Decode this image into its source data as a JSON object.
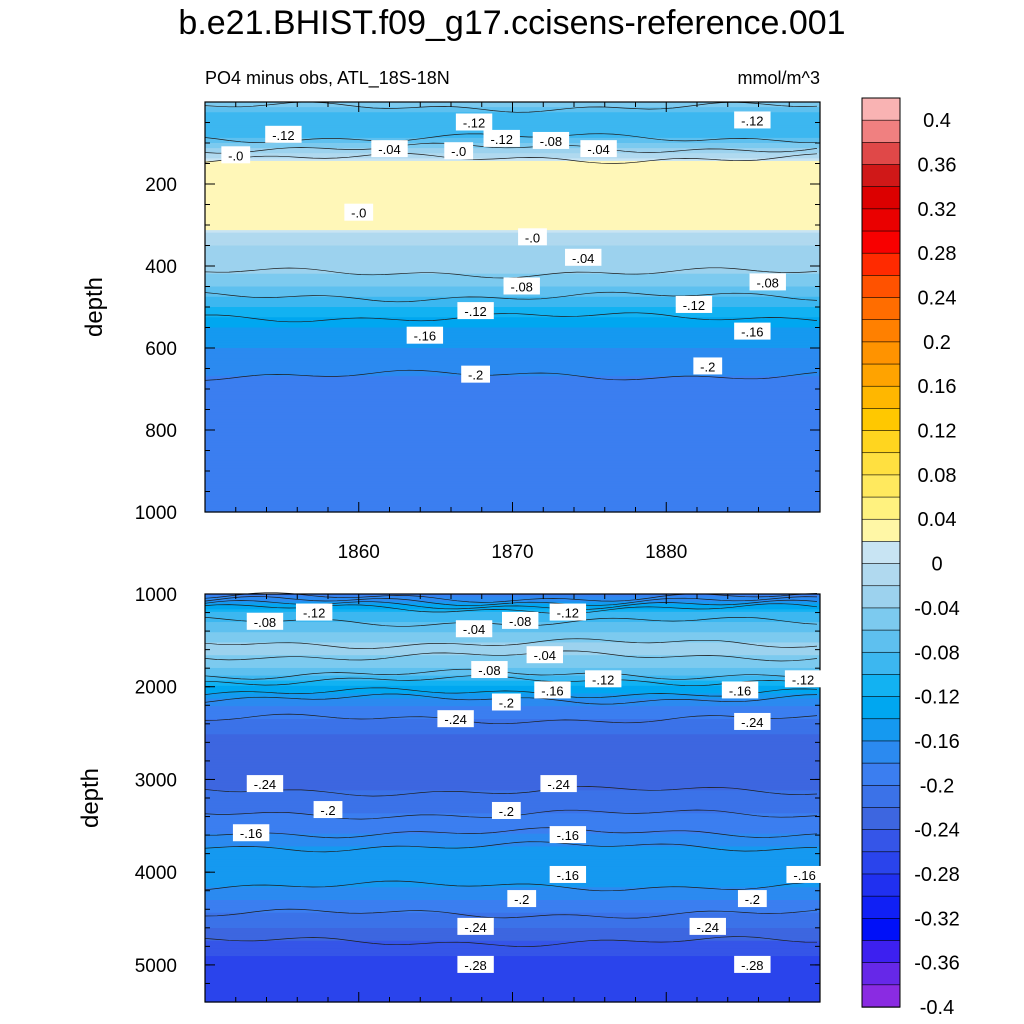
{
  "figure": {
    "title": "b.e21.BHIST.f09_g17.ccisens-reference.001",
    "subtitle_left": "PO4 minus obs, ATL_18S-18N",
    "subtitle_right": "mmol/m^3"
  },
  "colors": {
    "zero_band": "#fff7b8",
    "positive_small": "#fbe8a0"
  },
  "chart_data": [
    {
      "type": "heatmap",
      "panel": "top",
      "title": "PO4 minus obs, ATL_18S-18N",
      "units": "mmol/m^3",
      "xlabel": "",
      "ylabel": "depth",
      "x_range": [
        1850,
        1890
      ],
      "x_ticks": [
        1860,
        1870,
        1880
      ],
      "ylim": [
        1000,
        0
      ],
      "y_ticks": [
        200,
        400,
        600,
        800,
        1000
      ],
      "depths": [
        0,
        25,
        50,
        75,
        100,
        125,
        150,
        170,
        200,
        250,
        300,
        320,
        350,
        400,
        450,
        500,
        550,
        600,
        700,
        800,
        900,
        1000
      ],
      "profile": [
        -0.06,
        -0.1,
        -0.12,
        -0.12,
        -0.08,
        -0.04,
        0.0,
        0.0,
        0.0,
        0.0,
        0.0,
        -0.02,
        -0.04,
        -0.05,
        -0.08,
        -0.12,
        -0.16,
        -0.18,
        -0.21,
        -0.22,
        -0.22,
        -0.22
      ],
      "contour_labels": [
        {
          "text": "-.12",
          "x": 1867.5,
          "y": 50
        },
        {
          "text": "-.12",
          "x": 1855.1,
          "y": 80
        },
        {
          "text": "-.12",
          "x": 1869.3,
          "y": 90
        },
        {
          "text": "-.08",
          "x": 1872.5,
          "y": 95
        },
        {
          "text": "-.12",
          "x": 1885.6,
          "y": 45
        },
        {
          "text": "-.04",
          "x": 1862.0,
          "y": 115
        },
        {
          "text": "-.04",
          "x": 1875.6,
          "y": 115
        },
        {
          "text": "-.0",
          "x": 1852.0,
          "y": 130
        },
        {
          "text": "-.0",
          "x": 1866.5,
          "y": 120
        },
        {
          "text": "-.0",
          "x": 1860.0,
          "y": 270
        },
        {
          "text": "-.0",
          "x": 1871.3,
          "y": 330
        },
        {
          "text": "-.04",
          "x": 1874.6,
          "y": 380
        },
        {
          "text": "-.08",
          "x": 1870.6,
          "y": 450
        },
        {
          "text": "-.08",
          "x": 1886.6,
          "y": 440
        },
        {
          "text": "-.12",
          "x": 1867.6,
          "y": 510
        },
        {
          "text": "-.12",
          "x": 1881.8,
          "y": 495
        },
        {
          "text": "-.16",
          "x": 1864.3,
          "y": 570
        },
        {
          "text": "-.16",
          "x": 1885.6,
          "y": 560
        },
        {
          "text": "-.2",
          "x": 1867.6,
          "y": 665
        },
        {
          "text": "-.2",
          "x": 1882.7,
          "y": 645
        }
      ]
    },
    {
      "type": "heatmap",
      "panel": "bottom",
      "xlabel": "",
      "ylabel": "depth",
      "x_range": [
        1850,
        1890
      ],
      "ylim": [
        5400,
        1000
      ],
      "y_ticks": [
        1000,
        2000,
        3000,
        4000,
        5000
      ],
      "depths": [
        1000,
        1200,
        1400,
        1600,
        1800,
        2000,
        2200,
        2500,
        3000,
        3500,
        3800,
        4000,
        4300,
        4600,
        4900,
        5200,
        5400
      ],
      "profile": [
        -0.22,
        -0.12,
        -0.08,
        -0.05,
        -0.08,
        -0.14,
        -0.2,
        -0.24,
        -0.25,
        -0.21,
        -0.17,
        -0.16,
        -0.2,
        -0.24,
        -0.28,
        -0.29,
        -0.29
      ],
      "contour_labels": [
        {
          "text": "-.08",
          "x": 1853.9,
          "y": 1300
        },
        {
          "text": "-.12",
          "x": 1857.1,
          "y": 1200
        },
        {
          "text": "-.08",
          "x": 1870.5,
          "y": 1290
        },
        {
          "text": "-.04",
          "x": 1867.5,
          "y": 1380
        },
        {
          "text": "-.12",
          "x": 1873.6,
          "y": 1200
        },
        {
          "text": "-.04",
          "x": 1872.1,
          "y": 1660
        },
        {
          "text": "-.08",
          "x": 1868.5,
          "y": 1820
        },
        {
          "text": "-.12",
          "x": 1875.9,
          "y": 1920
        },
        {
          "text": "-.16",
          "x": 1872.6,
          "y": 2040
        },
        {
          "text": "-.2",
          "x": 1869.6,
          "y": 2170
        },
        {
          "text": "-.16",
          "x": 1884.8,
          "y": 2040
        },
        {
          "text": "-.12",
          "x": 1888.9,
          "y": 1920
        },
        {
          "text": "-.24",
          "x": 1866.3,
          "y": 2350
        },
        {
          "text": "-.24",
          "x": 1885.6,
          "y": 2380
        },
        {
          "text": "-.24",
          "x": 1853.9,
          "y": 3050
        },
        {
          "text": "-.24",
          "x": 1873.0,
          "y": 3050
        },
        {
          "text": "-.2",
          "x": 1858.0,
          "y": 3330
        },
        {
          "text": "-.2",
          "x": 1869.6,
          "y": 3340
        },
        {
          "text": "-.16",
          "x": 1853.0,
          "y": 3580
        },
        {
          "text": "-.16",
          "x": 1873.6,
          "y": 3600
        },
        {
          "text": "-.16",
          "x": 1873.6,
          "y": 4030
        },
        {
          "text": "-.16",
          "x": 1889.0,
          "y": 4030
        },
        {
          "text": "-.2",
          "x": 1870.6,
          "y": 4290
        },
        {
          "text": "-.2",
          "x": 1885.6,
          "y": 4290
        },
        {
          "text": "-.24",
          "x": 1867.6,
          "y": 4590
        },
        {
          "text": "-.24",
          "x": 1882.7,
          "y": 4590
        },
        {
          "text": "-.28",
          "x": 1867.6,
          "y": 5000
        },
        {
          "text": "-.28",
          "x": 1885.6,
          "y": 5000
        }
      ]
    }
  ],
  "colorbar": {
    "labels": [
      "0.4",
      "0.36",
      "0.32",
      "0.28",
      "0.24",
      "0.2",
      "0.16",
      "0.12",
      "0.08",
      "0.04",
      "0",
      "-0.04",
      "-0.08",
      "-0.12",
      "-0.16",
      "-0.2",
      "-0.24",
      "-0.28",
      "-0.32",
      "-0.36",
      "-0.4"
    ],
    "colors_top_to_bottom": [
      "#f9b3b3",
      "#f08080",
      "#e04848",
      "#d01818",
      "#dc0000",
      "#ea0000",
      "#f80000",
      "#ff2a00",
      "#ff5200",
      "#ff6d00",
      "#ff8000",
      "#ff9300",
      "#ffa300",
      "#ffb700",
      "#ffc800",
      "#ffd51f",
      "#ffe040",
      "#ffe95e",
      "#fff27f",
      "#fff7a6",
      "#c8e4f3",
      "#b0d9ef",
      "#9cd2ee",
      "#7ccaef",
      "#5ec0ef",
      "#3cb7f0",
      "#12b2f2",
      "#00a7f0",
      "#1599f0",
      "#2b8af0",
      "#3b7ef0",
      "#3b72e8",
      "#3d66e0",
      "#3555e8",
      "#2a44ec",
      "#2030f0",
      "#1020f5",
      "#0010f8",
      "#3d20f0",
      "#6628e8",
      "#8a2be2"
    ],
    "levels_top_to_bottom": [
      0.4,
      0.38,
      0.36,
      0.34,
      0.32,
      0.3,
      0.28,
      0.26,
      0.24,
      0.22,
      0.2,
      0.18,
      0.16,
      0.14,
      0.12,
      0.1,
      0.08,
      0.06,
      0.04,
      0.02,
      -0.02,
      -0.04,
      -0.06,
      -0.08,
      -0.1,
      -0.12,
      -0.14,
      -0.16,
      -0.18,
      -0.2,
      -0.22,
      -0.24,
      -0.26,
      -0.28,
      -0.3,
      -0.32,
      -0.34,
      -0.36,
      -0.38,
      -0.4,
      -0.42
    ]
  }
}
